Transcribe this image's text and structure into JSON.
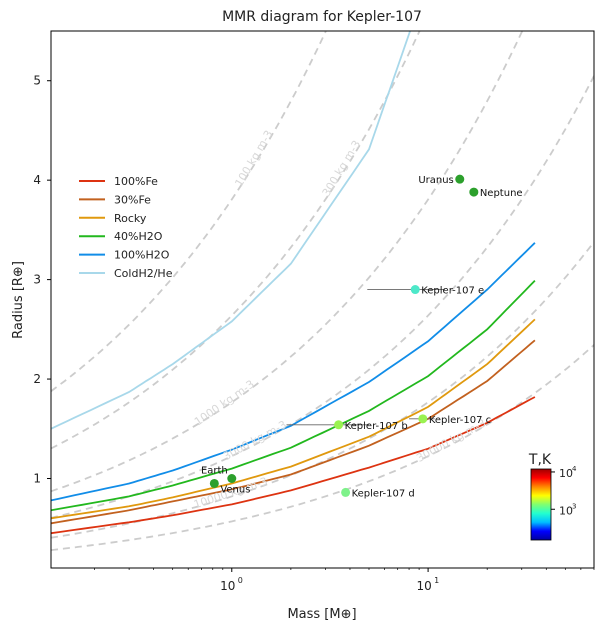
{
  "chart_data": {
    "type": "line",
    "title": "MMR diagram for Kepler-107",
    "xlabel": "Mass [M⊕]",
    "ylabel": "Radius [R⊕]",
    "xscale": "log",
    "xlim": [
      0.12,
      70
    ],
    "ylim": [
      0.1,
      5.5
    ],
    "grid": false,
    "legend_position": "upper-left",
    "x_ticks": [
      {
        "value": 1,
        "label_base": "10",
        "label_exp": "0"
      },
      {
        "value": 10,
        "label_base": "10",
        "label_exp": "1"
      }
    ],
    "y_ticks": [
      {
        "value": 1,
        "label": "1"
      },
      {
        "value": 2,
        "label": "2"
      },
      {
        "value": 3,
        "label": "3"
      },
      {
        "value": 4,
        "label": "4"
      },
      {
        "value": 5,
        "label": "5"
      }
    ],
    "series": [
      {
        "name": "100%Fe",
        "color": "#dd3311",
        "x": [
          0.12,
          0.3,
          0.5,
          1,
          2,
          5,
          10,
          20,
          35
        ],
        "y": [
          0.45,
          0.56,
          0.63,
          0.74,
          0.88,
          1.11,
          1.3,
          1.56,
          1.82
        ]
      },
      {
        "name": "30%Fe",
        "color": "#c2611f",
        "x": [
          0.12,
          0.3,
          0.5,
          1,
          2,
          5,
          10,
          20,
          35
        ],
        "y": [
          0.55,
          0.68,
          0.77,
          0.89,
          1.04,
          1.33,
          1.6,
          1.98,
          2.39
        ]
      },
      {
        "name": "Rocky",
        "color": "#e0990e",
        "x": [
          0.12,
          0.3,
          0.5,
          1,
          2,
          5,
          10,
          20,
          35
        ],
        "y": [
          0.6,
          0.72,
          0.81,
          0.95,
          1.12,
          1.42,
          1.72,
          2.15,
          2.6
        ]
      },
      {
        "name": "40%H2O",
        "color": "#22b81e",
        "x": [
          0.12,
          0.3,
          0.5,
          1,
          2,
          5,
          10,
          20,
          35
        ],
        "y": [
          0.68,
          0.82,
          0.93,
          1.1,
          1.31,
          1.68,
          2.03,
          2.5,
          2.99
        ]
      },
      {
        "name": "100%H2O",
        "color": "#118de8",
        "x": [
          0.12,
          0.3,
          0.5,
          1,
          2,
          5,
          10,
          20,
          35
        ],
        "y": [
          0.78,
          0.95,
          1.08,
          1.29,
          1.53,
          1.97,
          2.38,
          2.9,
          3.37
        ]
      },
      {
        "name": "ColdH2/He",
        "color": "#a8d8ea",
        "x": [
          0.12,
          0.3,
          0.5,
          1,
          2,
          5,
          8.1
        ],
        "y": [
          1.5,
          1.87,
          2.15,
          2.58,
          3.16,
          4.31,
          5.5
        ]
      }
    ],
    "density_curves": [
      {
        "label": "100 kg m-3",
        "density": 100
      },
      {
        "label": "300 kg m-3",
        "density": 300
      },
      {
        "label": "1000 kg m-3",
        "density": 1000
      },
      {
        "label": "3000 kg m-3",
        "density": 3000
      },
      {
        "label": "10000 kg m-3",
        "density": 10000
      },
      {
        "label": "30000 kg m-3",
        "density": 30000
      }
    ],
    "planets": [
      {
        "name": "Earth",
        "mass": 1.0,
        "radius": 1.0,
        "color": "#2ca02c",
        "label_side": "left-above",
        "has_error": false
      },
      {
        "name": "Venus",
        "mass": 0.815,
        "radius": 0.95,
        "color": "#2ca02c",
        "label_side": "right-below",
        "has_error": false
      },
      {
        "name": "Uranus",
        "mass": 14.5,
        "radius": 4.01,
        "color": "#2ca02c",
        "label_side": "left",
        "has_error": false
      },
      {
        "name": "Neptune",
        "mass": 17.1,
        "radius": 3.88,
        "color": "#2ca02c",
        "label_side": "right",
        "has_error": false
      },
      {
        "name": "Kepler-107 b",
        "mass": 3.5,
        "radius": 1.54,
        "color": "#9af251",
        "label_side": "right",
        "has_error": true,
        "mass_err": [
          1.9,
          5.0
        ]
      },
      {
        "name": "Kepler-107 c",
        "mass": 9.4,
        "radius": 1.6,
        "color": "#9af251",
        "label_side": "right",
        "has_error": true,
        "mass_err": [
          8.0,
          10.8
        ]
      },
      {
        "name": "Kepler-107 d",
        "mass": 3.8,
        "radius": 0.86,
        "color": "#7ef28a",
        "label_side": "right",
        "has_error": false
      },
      {
        "name": "Kepler-107 e",
        "mass": 8.6,
        "radius": 2.9,
        "color": "#4de8c9",
        "label_side": "right",
        "has_error": true,
        "mass_err": [
          4.9,
          12.2
        ]
      }
    ],
    "colorbar": {
      "label": "T,K",
      "ticks": [
        {
          "value": 1000,
          "label_base": "10",
          "label_exp": "3"
        },
        {
          "value": 10000,
          "label_base": "10",
          "label_exp": "4"
        }
      ],
      "range": [
        150,
        12000
      ],
      "colors": [
        "#0000a0",
        "#0000ff",
        "#00c0ff",
        "#22ffd0",
        "#80ff70",
        "#ffff00",
        "#ff8800",
        "#ff0000",
        "#a00000"
      ]
    }
  }
}
